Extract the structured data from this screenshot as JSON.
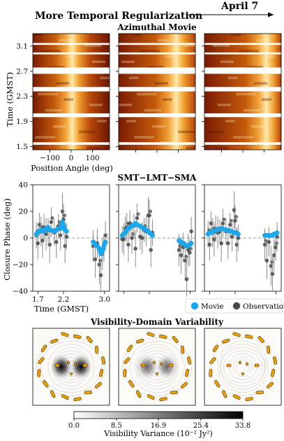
{
  "header": {
    "regularization_label": "More Temporal Regularization",
    "date_label": "April 7"
  },
  "colors": {
    "movie": "#1aa7ec",
    "observation": "#4a4a4a",
    "ring_knot": "#f0a202",
    "knot_edge": "#3a2a00"
  },
  "chart_data": [
    {
      "type": "heatmap",
      "title": "Azimuthal Movie",
      "colormap": "afmhot",
      "panels": 3,
      "ylabel": "Time (GMST)",
      "xlabel": "Position Angle (deg)",
      "xlim": [
        -180,
        180
      ],
      "ylim": [
        1.45,
        3.3
      ],
      "x_ticks": [
        "−100",
        "0",
        "100"
      ],
      "y_ticks": [
        "1.5",
        "1.9",
        "2.3",
        "2.7",
        "3.1"
      ],
      "time_gaps": [
        [
          1.53,
          1.57
        ],
        [
          1.97,
          2.03
        ],
        [
          2.38,
          2.45
        ],
        [
          2.66,
          2.76
        ],
        [
          2.97,
          3.0
        ],
        [
          3.12,
          3.15
        ]
      ],
      "bright_bands": [
        {
          "panel": 1,
          "pa_center": 5,
          "width": 60
        },
        {
          "panel": 2,
          "pa_center": 90,
          "width": 70
        },
        {
          "panel": 3,
          "pa_center": 110,
          "width": 70
        }
      ]
    },
    {
      "type": "scatter",
      "title": "SMT−LMT−SMA",
      "ylabel": "Closure Phase (deg)",
      "xlabel": "Time (GMST)",
      "ylim": [
        -40,
        40
      ],
      "xlim": [
        1.6,
        3.1
      ],
      "y_ticks": [
        "−40",
        "−20",
        "0",
        "20",
        "40"
      ],
      "x_ticks": [
        "1.7",
        "2.2",
        "3.0"
      ],
      "legend": {
        "placement": "bottom-right",
        "entries": [
          "Movie",
          "Observation"
        ]
      },
      "series": [
        {
          "name": "Observation",
          "panel_offsets": [
            0,
            3,
            -1
          ],
          "x": [
            1.67,
            1.7,
            1.73,
            1.76,
            1.79,
            1.82,
            1.86,
            1.9,
            1.93,
            1.96,
            2.02,
            2.06,
            2.1,
            2.14,
            2.18,
            2.2,
            2.23,
            2.26,
            2.78,
            2.82,
            2.86,
            2.9,
            2.93,
            2.96,
            2.99,
            3.02
          ],
          "y": [
            2,
            -4,
            10,
            5,
            -2,
            8,
            3,
            6,
            -5,
            12,
            4,
            -3,
            9,
            2,
            20,
            14,
            -6,
            1,
            -6,
            -16,
            -4,
            -20,
            -28,
            -12,
            -8,
            2
          ],
          "err": [
            10,
            12,
            9,
            11,
            13,
            10,
            12,
            9,
            14,
            11,
            10,
            12,
            9,
            11,
            14,
            12,
            13,
            10,
            12,
            14,
            11,
            15,
            13,
            12,
            10,
            11
          ]
        },
        {
          "name": "Movie",
          "x": [
            1.67,
            1.7,
            1.73,
            1.76,
            1.79,
            1.82,
            1.86,
            1.9,
            1.93,
            1.96,
            2.02,
            2.06,
            2.1,
            2.14,
            2.18,
            2.2,
            2.23,
            2.26,
            2.78,
            2.82,
            2.86,
            2.9,
            2.93,
            2.96,
            2.99,
            3.02
          ],
          "panel_values": [
            [
              3,
              4,
              5,
              6,
              6,
              5,
              7,
              8,
              6,
              6,
              5,
              6,
              7,
              7,
              12,
              10,
              6,
              5,
              -3,
              -5,
              -6,
              -8,
              -12,
              -10,
              -6,
              -3
            ],
            [
              2,
              3,
              4,
              6,
              7,
              8,
              9,
              10,
              11,
              10,
              9,
              8,
              7,
              6,
              5,
              4,
              3,
              2,
              -2,
              -3,
              -4,
              -5,
              -6,
              -6,
              -5,
              -4
            ],
            [
              3,
              4,
              4,
              5,
              5,
              6,
              6,
              7,
              7,
              7,
              6,
              6,
              5,
              5,
              4,
              4,
              4,
              3,
              2,
              2,
              2,
              2,
              2,
              3,
              3,
              4
            ]
          ]
        }
      ]
    },
    {
      "type": "heatmap",
      "title": "Visibility-Domain Variability",
      "colorbar": {
        "label": "Visibility Variance (10⁻² Jy²)",
        "ticks": [
          "0.0",
          "8.5",
          "16.9",
          "25.4",
          "33.8"
        ],
        "range": [
          0.0,
          33.8
        ],
        "colormap": "Greys"
      },
      "panels": 3,
      "peak_variance": [
        33.8,
        18,
        3
      ]
    }
  ]
}
